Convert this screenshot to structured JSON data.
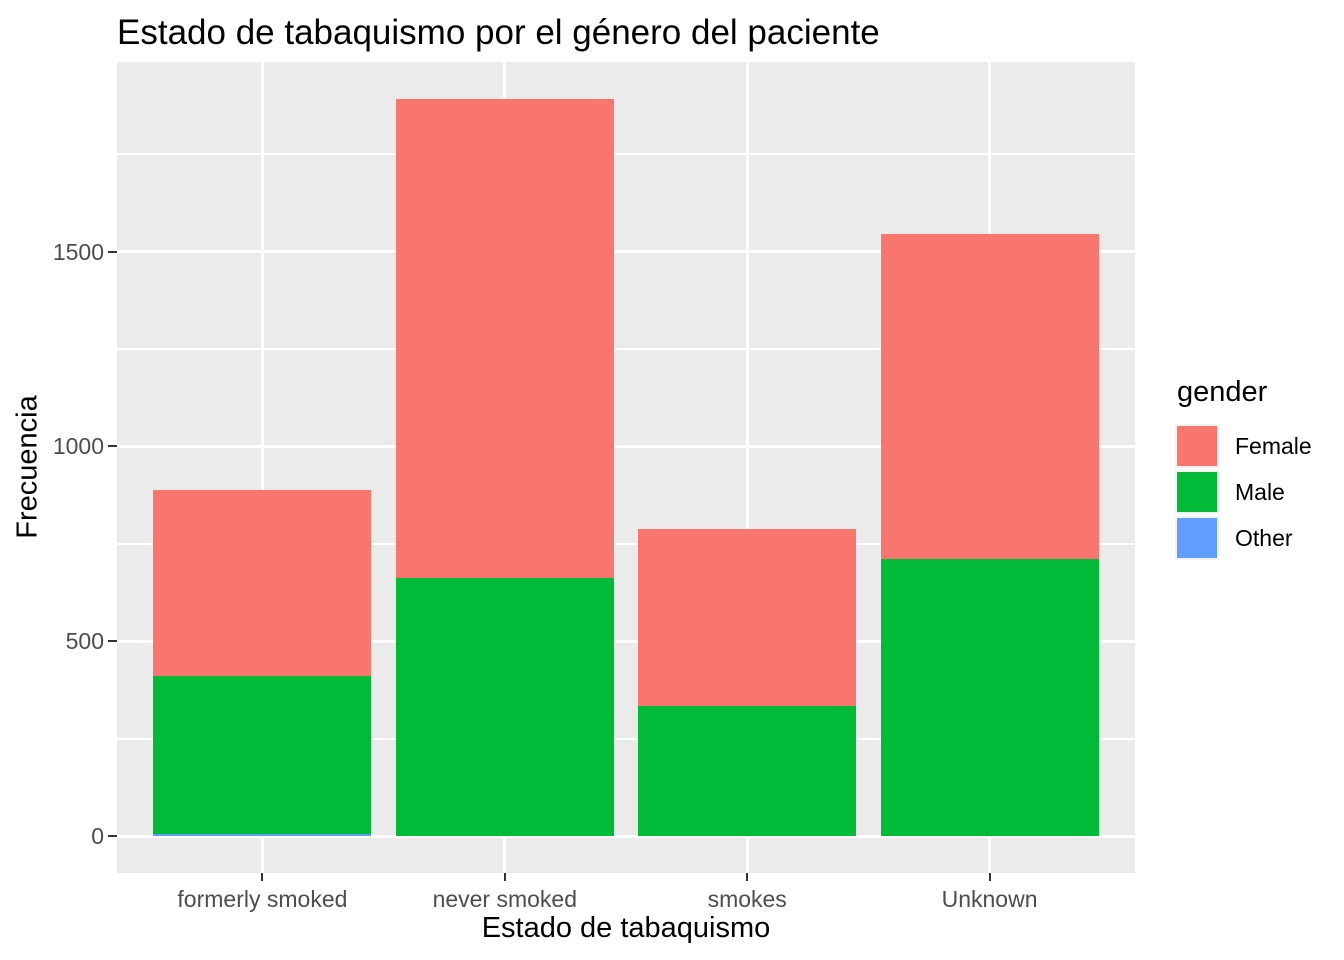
{
  "title": "Estado de tabaquismo por el género del paciente",
  "chart_data": {
    "type": "bar",
    "stacked": true,
    "title": "Estado de tabaquismo por el género del paciente",
    "xlabel": "Estado de tabaquismo",
    "ylabel": "Frecuencia",
    "categories": [
      "formerly smoked",
      "never smoked",
      "smokes",
      "Unknown"
    ],
    "series": [
      {
        "name": "Female",
        "color": "#F8766D",
        "values": [
          477,
          1229,
          456,
          832
        ]
      },
      {
        "name": "Male",
        "color": "#00BA38",
        "values": [
          407,
          663,
          333,
          712
        ]
      },
      {
        "name": "Other",
        "color": "#619CFF",
        "values": [
          1,
          0,
          0,
          0
        ]
      }
    ],
    "stack_order_bottom_to_top": [
      "Other",
      "Male",
      "Female"
    ],
    "totals": [
      885,
      1892,
      789,
      1544
    ],
    "y_ticks": [
      0,
      500,
      1000,
      1500
    ],
    "y_minor_ticks": [
      250,
      750,
      1250,
      1750
    ],
    "ylim": [
      0,
      1892
    ],
    "grid": true,
    "legend": {
      "title": "gender",
      "entries": [
        "Female",
        "Male",
        "Other"
      ],
      "position": "right"
    }
  },
  "colors": {
    "panel_background": "#EBEBEB",
    "gridline": "#FFFFFF",
    "axis_text": "#4D4D4D",
    "tick_mark": "#333333",
    "title_text": "#000000",
    "female": "#F8766D",
    "male": "#00BA38",
    "other": "#619CFF"
  }
}
